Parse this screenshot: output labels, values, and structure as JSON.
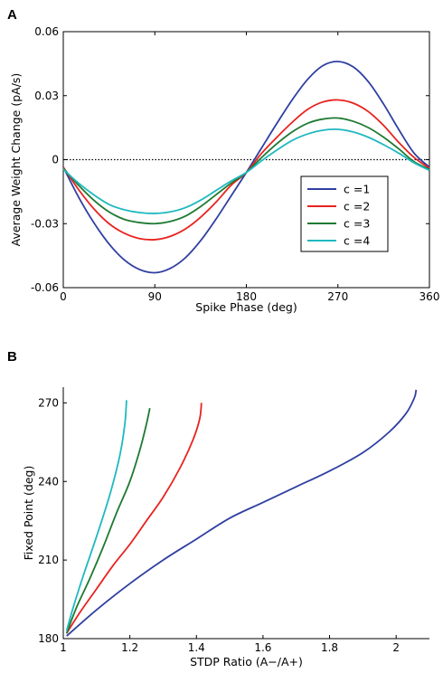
{
  "chart_data": [
    {
      "panel": "A",
      "type": "line",
      "xlabel": "Spike Phase (deg)",
      "ylabel": "Average Weight Change (pA/s)",
      "xlim": [
        0,
        360
      ],
      "ylim": [
        -0.06,
        0.06
      ],
      "xticks": [
        "0",
        "90",
        "180",
        "270",
        "360"
      ],
      "yticks": [
        "-0.06",
        "-0.03",
        "0",
        "0.03",
        "0.06"
      ],
      "grid": false,
      "legend": "lower right",
      "reference_line": {
        "y": 0,
        "style": "dotted",
        "color": "#000000"
      },
      "x": [
        0,
        15,
        30,
        45,
        60,
        75,
        90,
        105,
        120,
        135,
        150,
        165,
        180,
        195,
        210,
        225,
        240,
        255,
        270,
        285,
        300,
        315,
        330,
        345,
        360
      ],
      "series": [
        {
          "name": "c =1",
          "color": "#2f3fa0",
          "values": [
            -0.0035,
            -0.0175,
            -0.0295,
            -0.0395,
            -0.047,
            -0.0515,
            -0.053,
            -0.051,
            -0.046,
            -0.038,
            -0.028,
            -0.017,
            -0.006,
            0.0055,
            0.017,
            0.028,
            0.0375,
            0.044,
            0.046,
            0.0435,
            0.0365,
            0.026,
            0.014,
            0.003,
            -0.0035
          ]
        },
        {
          "name": "c =2",
          "color": "#e8231f",
          "values": [
            -0.0035,
            -0.014,
            -0.023,
            -0.03,
            -0.0345,
            -0.037,
            -0.0375,
            -0.036,
            -0.0325,
            -0.027,
            -0.02,
            -0.012,
            -0.006,
            0.003,
            0.0105,
            0.0175,
            0.0235,
            0.027,
            0.028,
            0.0265,
            0.0225,
            0.016,
            0.008,
            0.001,
            -0.004
          ]
        },
        {
          "name": "c =3",
          "color": "#1e7a32",
          "values": [
            -0.004,
            -0.012,
            -0.019,
            -0.0245,
            -0.028,
            -0.0295,
            -0.03,
            -0.029,
            -0.0265,
            -0.022,
            -0.0165,
            -0.011,
            -0.006,
            0.001,
            0.0075,
            0.013,
            0.017,
            0.019,
            0.0195,
            0.018,
            0.015,
            0.0105,
            0.005,
            -0.001,
            -0.0045
          ]
        },
        {
          "name": "c =4",
          "color": "#1fb8c0",
          "values": [
            -0.0045,
            -0.011,
            -0.0165,
            -0.021,
            -0.0235,
            -0.0248,
            -0.0252,
            -0.0245,
            -0.0225,
            -0.019,
            -0.0145,
            -0.01,
            -0.006,
            -0.0005,
            0.0045,
            0.009,
            0.012,
            0.0138,
            0.0142,
            0.013,
            0.0105,
            0.007,
            0.003,
            -0.0015,
            -0.005
          ]
        }
      ]
    },
    {
      "panel": "B",
      "type": "line",
      "xlabel": "STDP Ratio (A−/A+)",
      "ylabel": "Fixed Point (deg)",
      "xlim": [
        1,
        2.1
      ],
      "ylim": [
        180,
        276
      ],
      "xticks": [
        "1",
        "1.2",
        "1.4",
        "1.6",
        "1.8",
        "2"
      ],
      "yticks": [
        "180",
        "210",
        "240",
        "270"
      ],
      "grid": false,
      "series": [
        {
          "name": "c =1",
          "color": "#2f3fa0",
          "points": [
            [
              1.01,
              181
            ],
            [
              1.1,
              191
            ],
            [
              1.2,
              201
            ],
            [
              1.3,
              210
            ],
            [
              1.4,
              218
            ],
            [
              1.5,
              226
            ],
            [
              1.6,
              232
            ],
            [
              1.7,
              238
            ],
            [
              1.8,
              244
            ],
            [
              1.9,
              251
            ],
            [
              1.98,
              259
            ],
            [
              2.03,
              266
            ],
            [
              2.055,
              272
            ],
            [
              2.06,
              275
            ]
          ]
        },
        {
          "name": "c =2",
          "color": "#e8231f",
          "points": [
            [
              1.01,
              182
            ],
            [
              1.05,
              190
            ],
            [
              1.1,
              199
            ],
            [
              1.15,
              208
            ],
            [
              1.2,
              216
            ],
            [
              1.25,
              225
            ],
            [
              1.3,
              234
            ],
            [
              1.35,
              245
            ],
            [
              1.39,
              256
            ],
            [
              1.41,
              264
            ],
            [
              1.415,
              270
            ]
          ]
        },
        {
          "name": "c =3",
          "color": "#1e7a32",
          "points": [
            [
              1.01,
              182
            ],
            [
              1.04,
              192
            ],
            [
              1.08,
              203
            ],
            [
              1.12,
              215
            ],
            [
              1.16,
              228
            ],
            [
              1.2,
              240
            ],
            [
              1.23,
              252
            ],
            [
              1.25,
              262
            ],
            [
              1.26,
              268
            ]
          ]
        },
        {
          "name": "c =4",
          "color": "#1fb8c0",
          "points": [
            [
              1.01,
              183
            ],
            [
              1.03,
              192
            ],
            [
              1.06,
              204
            ],
            [
              1.1,
              219
            ],
            [
              1.14,
              235
            ],
            [
              1.17,
              250
            ],
            [
              1.185,
              262
            ],
            [
              1.19,
              271
            ]
          ]
        }
      ]
    }
  ]
}
